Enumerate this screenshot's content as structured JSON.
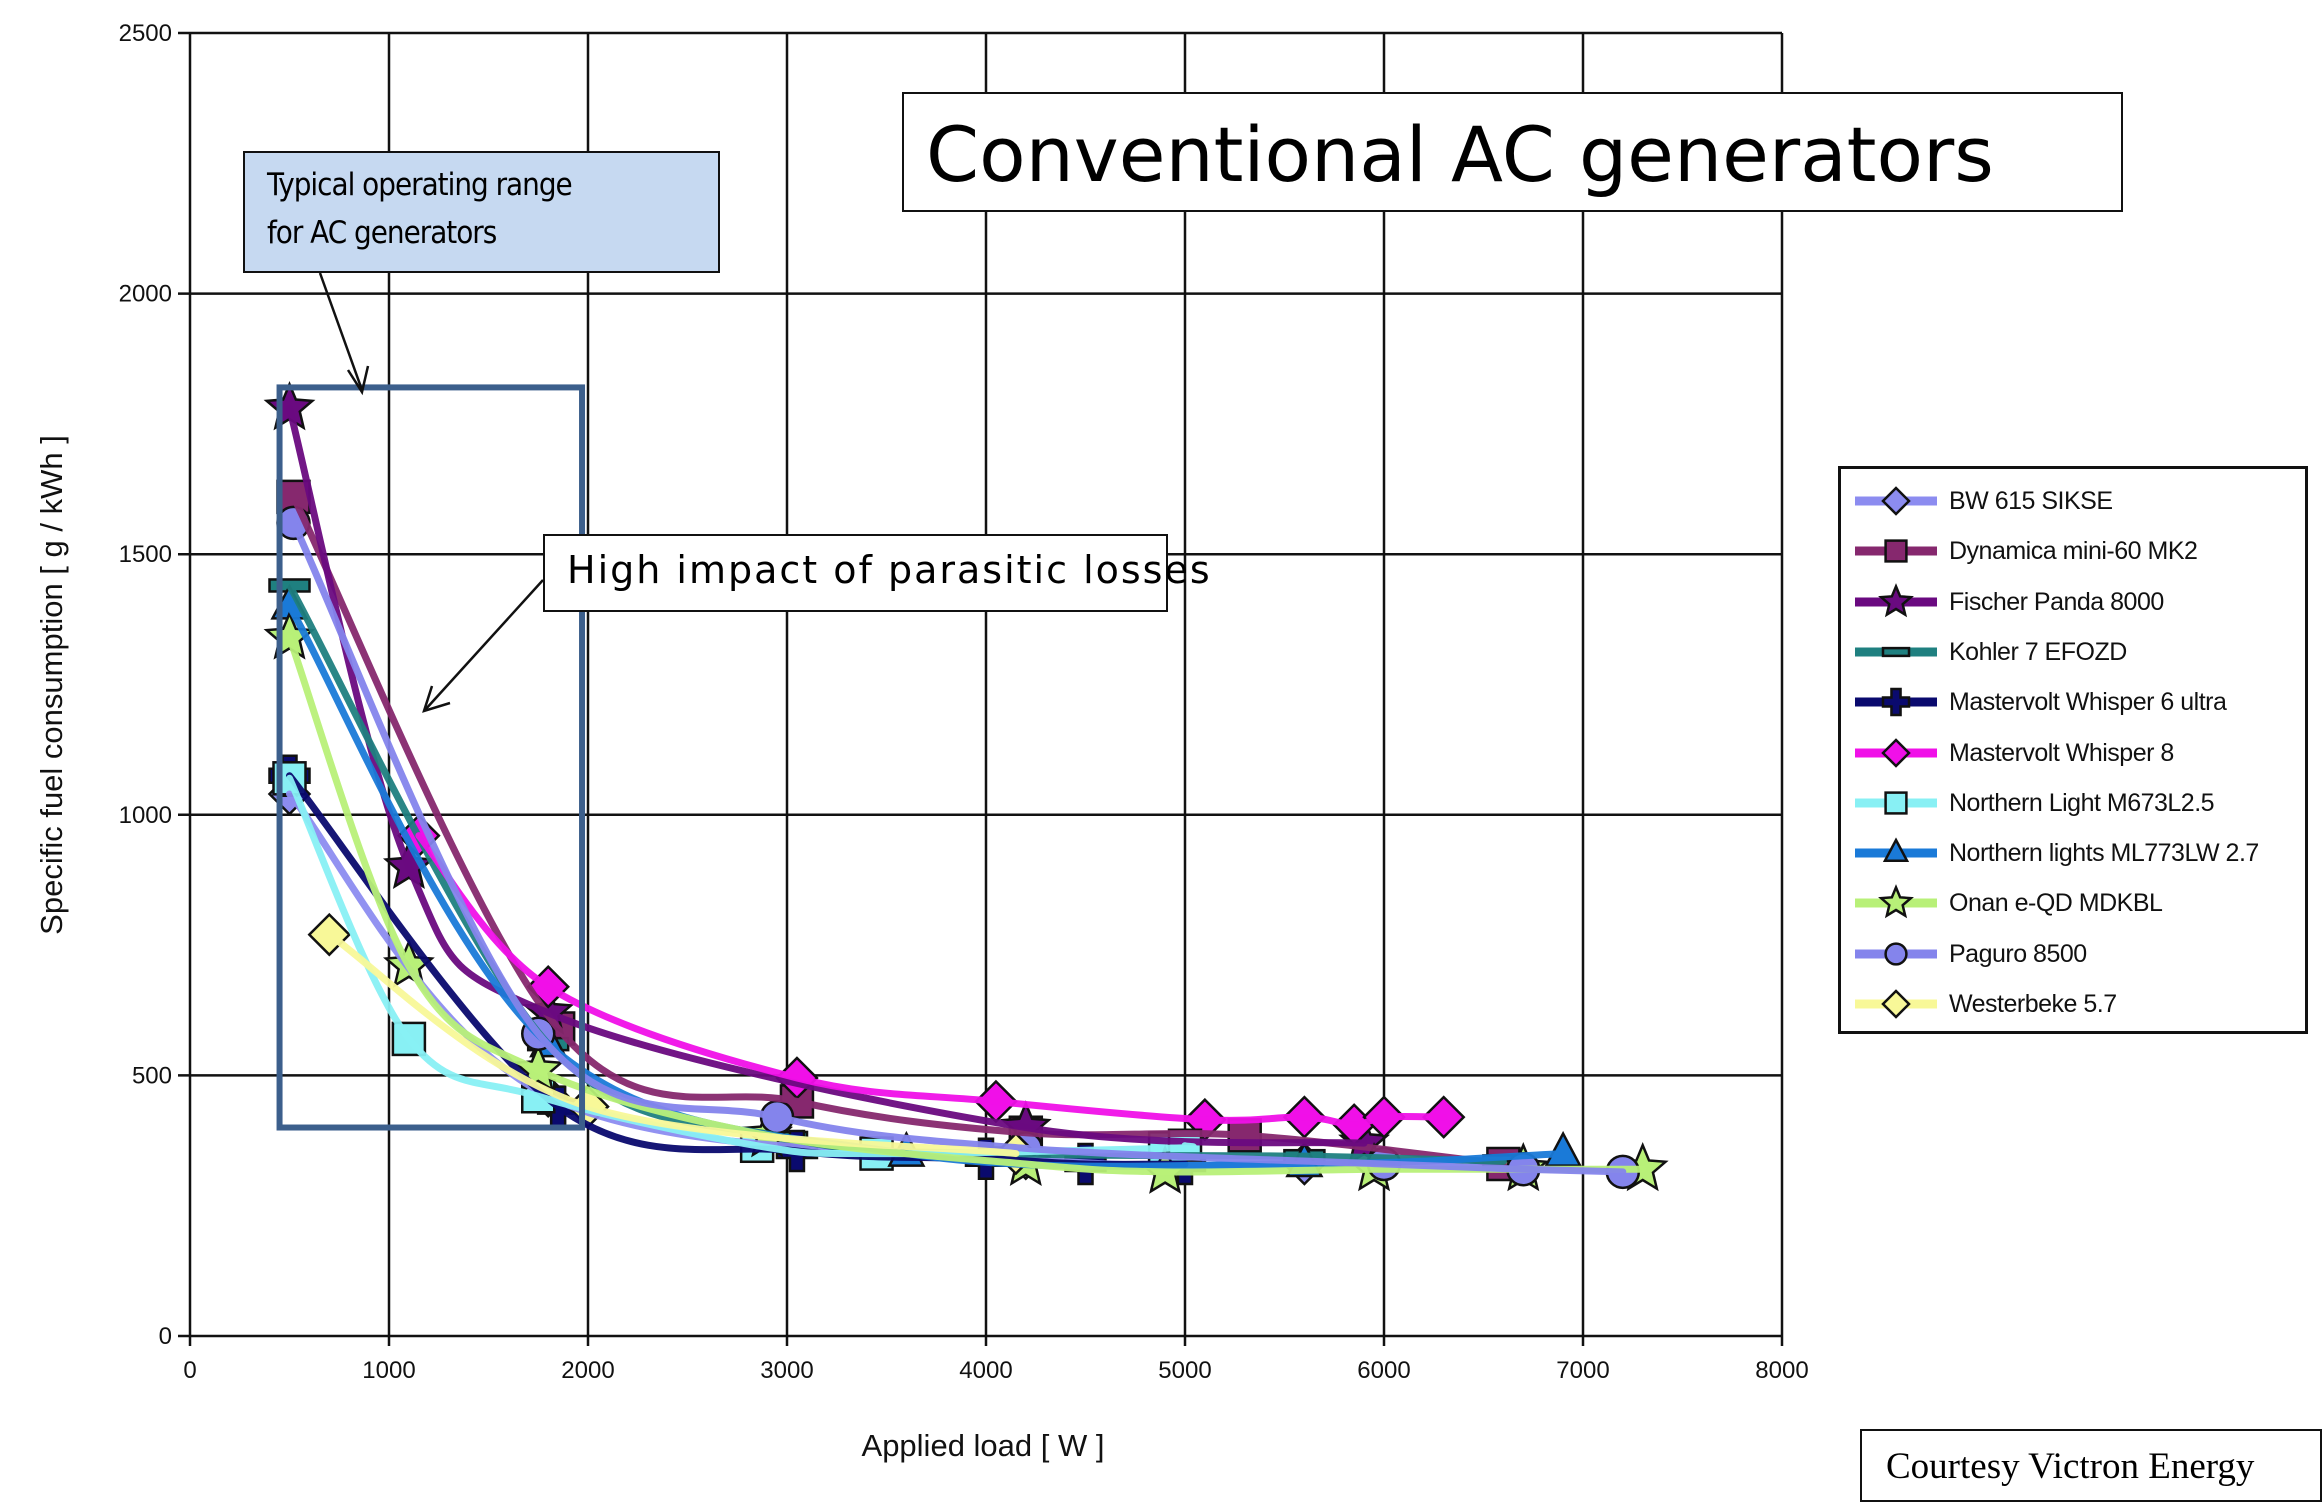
{
  "chart_data": {
    "type": "line",
    "title": "Conventional AC generators",
    "xlabel": "Applied load [ W ]",
    "ylabel": "Specific fuel consumption [ g / kWh ]",
    "xlim": [
      0,
      8000
    ],
    "ylim": [
      0,
      2500
    ],
    "xticks": [
      "0",
      "1000",
      "2000",
      "3000",
      "4000",
      "5000",
      "6000",
      "7000",
      "8000"
    ],
    "yticks": [
      "0",
      "500",
      "1000",
      "1500",
      "2000",
      "2500"
    ],
    "grid": true,
    "legend_position": "right",
    "series": [
      {
        "name": "BW 615 SIKSE",
        "color": "#8c8cf0",
        "marker": "diamond",
        "x": [
          500,
          1800,
          4200,
          5600
        ],
        "y": [
          1040,
          460,
          340,
          330
        ]
      },
      {
        "name": "Dynamica mini-60 MK2",
        "color": "#86286e",
        "marker": "square",
        "x": [
          520,
          1850,
          3050,
          4200,
          5300,
          6600
        ],
        "y": [
          1610,
          590,
          450,
          390,
          385,
          330
        ]
      },
      {
        "name": "Fischer Panda 8000",
        "color": "#6a0a80",
        "marker": "star",
        "x": [
          500,
          1100,
          1800,
          4200,
          5900
        ],
        "y": [
          1780,
          900,
          620,
          400,
          370
        ]
      },
      {
        "name": "Kohler 7 EFOZD",
        "color": "#1f8080",
        "marker": "dash",
        "x": [
          500,
          1800,
          3000,
          4100,
          5600,
          6600
        ],
        "y": [
          1440,
          560,
          380,
          350,
          345,
          335
        ]
      },
      {
        "name": "Mastervolt Whisper 6 ultra",
        "color": "#0a0a6e",
        "marker": "cross",
        "x": [
          500,
          1850,
          3050,
          4000,
          4500,
          5000
        ],
        "y": [
          1075,
          440,
          355,
          340,
          330,
          330
        ]
      },
      {
        "name": "Mastervolt Whisper 8",
        "color": "#f010e8",
        "marker": "diamond",
        "x": [
          1150,
          1800,
          3050,
          4050,
          5100,
          5600,
          5850,
          6000,
          6300
        ],
        "y": [
          960,
          670,
          495,
          450,
          415,
          420,
          405,
          420,
          420
        ]
      },
      {
        "name": "Northern Light M673L2.5",
        "color": "#88f0f4",
        "marker": "square",
        "x": [
          500,
          1100,
          1750,
          2850,
          3450,
          4900,
          5000
        ],
        "y": [
          1070,
          570,
          460,
          365,
          350,
          360,
          365
        ]
      },
      {
        "name": "Northern lights ML773LW 2.7",
        "color": "#1a7ad8",
        "marker": "triangle",
        "x": [
          500,
          1800,
          3600,
          5600,
          6900
        ],
        "y": [
          1400,
          560,
          350,
          330,
          350
        ]
      },
      {
        "name": "Onan e-QD MDKBL",
        "color": "#b8f078",
        "marker": "star",
        "x": [
          500,
          1100,
          1750,
          2900,
          4200,
          4900,
          5950,
          6700,
          7300
        ],
        "y": [
          1340,
          710,
          510,
          385,
          330,
          315,
          320,
          320,
          320
        ]
      },
      {
        "name": "Paguro 8500",
        "color": "#8484ec",
        "marker": "circle",
        "x": [
          520,
          1750,
          2950,
          4200,
          6000,
          6700,
          7200
        ],
        "y": [
          1560,
          580,
          420,
          360,
          330,
          320,
          315
        ]
      },
      {
        "name": "Westerbeke 5.7",
        "color": "#f8f898",
        "marker": "diamond",
        "x": [
          700,
          2000,
          4150
        ],
        "y": [
          770,
          440,
          350
        ]
      }
    ],
    "annotations": {
      "operating_range_label": [
        "Typical operating range",
        "for AC generators"
      ],
      "operating_range_x": [
        450,
        1970
      ],
      "operating_range_y": [
        400,
        1820
      ],
      "operating_range_color": "#3c5f8c",
      "parasitic_label": "High impact of parasitic losses",
      "courtesy": "Courtesy Victron Energy"
    }
  }
}
